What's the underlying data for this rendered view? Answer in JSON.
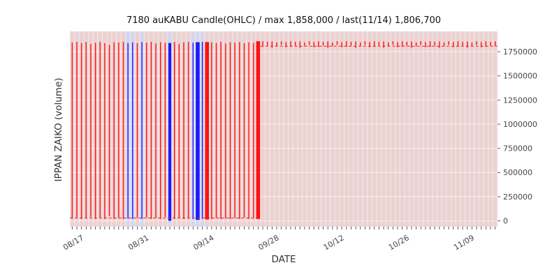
{
  "chart_data": {
    "type": "candlestick",
    "title": "7180 auKABU Candle(OHLC) / max 1,858,000 / last(11/14) 1,806,700",
    "xlabel": "DATE",
    "ylabel": "IPPAN ZAIKO (volume)",
    "max_value": 1858000,
    "last_label": "11/14",
    "last_value": 1806700,
    "n_days": 92,
    "ylim": [
      -60000,
      1960000
    ],
    "y_ticks": [
      0,
      250000,
      500000,
      750000,
      1000000,
      1250000,
      1500000,
      1750000
    ],
    "y_tick_labels": [
      "0",
      "250000",
      "500000",
      "750000",
      "1000000",
      "1250000",
      "1500000",
      "1750000"
    ],
    "x_ticks": [
      {
        "label": "08/17",
        "i": 2
      },
      {
        "label": "08/31",
        "i": 16
      },
      {
        "label": "09/14",
        "i": 30
      },
      {
        "label": "09/28",
        "i": 44
      },
      {
        "label": "10/12",
        "i": 58
      },
      {
        "label": "10/26",
        "i": 72
      },
      {
        "label": "11/09",
        "i": 86
      }
    ],
    "colors": {
      "plot_bg": "#ebebeb",
      "grid": "#ffffff",
      "red": "#ff1111",
      "blue": "#1a1aff",
      "stripe_red": "rgba(255,60,60,0.14)",
      "stripe_blue": "rgba(90,90,255,0.14)",
      "dashed": "#ff2222",
      "tick": "#333333",
      "tick_label": "#444444"
    },
    "legend": "none",
    "grid_on": true,
    "reference_lines": [
      {
        "start": 0,
        "end": 40,
        "value": 30000,
        "style": "dashed"
      },
      {
        "start": 41,
        "end": 91,
        "value": 1806700,
        "style": "dashed"
      }
    ],
    "candles": [
      [
        20000,
        1845000,
        "r",
        1
      ],
      [
        30000,
        1852000,
        "r",
        1
      ],
      [
        20000,
        1840000,
        "r",
        1
      ],
      [
        25000,
        1850000,
        "r",
        1
      ],
      [
        40000,
        1830000,
        "r",
        1
      ],
      [
        20000,
        1845000,
        "r",
        1
      ],
      [
        30000,
        1852000,
        "r",
        1
      ],
      [
        20000,
        1838000,
        "r",
        1
      ],
      [
        50000,
        1820000,
        "r",
        1
      ],
      [
        20000,
        1848000,
        "r",
        1
      ],
      [
        30000,
        1845000,
        "r",
        1
      ],
      [
        20000,
        1852000,
        "r",
        1
      ],
      [
        25000,
        1840000,
        "b",
        1
      ],
      [
        20000,
        1846000,
        "b",
        1
      ],
      [
        30000,
        1838000,
        "r",
        1
      ],
      [
        20000,
        1850000,
        "b",
        1
      ],
      [
        35000,
        1844000,
        "r",
        1
      ],
      [
        20000,
        1852000,
        "r",
        1
      ],
      [
        30000,
        1836000,
        "r",
        1
      ],
      [
        20000,
        1848000,
        "r",
        1
      ],
      [
        40000,
        1842000,
        "r",
        1
      ],
      [
        0,
        1840000,
        "b",
        3
      ],
      [
        20000,
        1850000,
        "r",
        1
      ],
      [
        30000,
        1830000,
        "r",
        1
      ],
      [
        20000,
        1846000,
        "r",
        1
      ],
      [
        25000,
        1852000,
        "r",
        1
      ],
      [
        20000,
        1844000,
        "b",
        1
      ],
      [
        10000,
        1848000,
        "b",
        4
      ],
      [
        20000,
        1852000,
        "b",
        1
      ],
      [
        15000,
        1850000,
        "r",
        4
      ],
      [
        20000,
        1846000,
        "r",
        1
      ],
      [
        30000,
        1840000,
        "r",
        1
      ],
      [
        20000,
        1852000,
        "r",
        1
      ],
      [
        25000,
        1836000,
        "r",
        1
      ],
      [
        20000,
        1848000,
        "r",
        1
      ],
      [
        30000,
        1844000,
        "r",
        1
      ],
      [
        20000,
        1850000,
        "r",
        1
      ],
      [
        35000,
        1838000,
        "r",
        1
      ],
      [
        20000,
        1846000,
        "r",
        1
      ],
      [
        25000,
        1842000,
        "r",
        1
      ],
      [
        20000,
        1858000,
        "r",
        4
      ],
      [
        1800000,
        1858000,
        "r",
        1
      ],
      [
        1812000,
        1852000,
        "r",
        1
      ],
      [
        1790000,
        1856000,
        "r",
        1
      ],
      [
        1806700,
        1846000,
        "r",
        1
      ],
      [
        1820000,
        1858000,
        "r",
        1
      ],
      [
        1796000,
        1850000,
        "r",
        1
      ],
      [
        1800000,
        1858000,
        "r",
        1
      ],
      [
        1812000,
        1852000,
        "r",
        1
      ],
      [
        1790000,
        1856000,
        "r",
        1
      ],
      [
        1806700,
        1846000,
        "r",
        1
      ],
      [
        1820000,
        1858000,
        "r",
        1
      ],
      [
        1796000,
        1850000,
        "r",
        1
      ],
      [
        1800000,
        1858000,
        "r",
        1
      ],
      [
        1812000,
        1852000,
        "r",
        1
      ],
      [
        1790000,
        1856000,
        "r",
        1
      ],
      [
        1806700,
        1846000,
        "r",
        1
      ],
      [
        1820000,
        1858000,
        "r",
        1
      ],
      [
        1796000,
        1850000,
        "r",
        1
      ],
      [
        1800000,
        1858000,
        "r",
        1
      ],
      [
        1812000,
        1852000,
        "r",
        1
      ],
      [
        1790000,
        1856000,
        "r",
        1
      ],
      [
        1806700,
        1846000,
        "r",
        1
      ],
      [
        1820000,
        1858000,
        "r",
        1
      ],
      [
        1796000,
        1850000,
        "r",
        1
      ],
      [
        1800000,
        1858000,
        "r",
        1
      ],
      [
        1812000,
        1852000,
        "r",
        1
      ],
      [
        1790000,
        1856000,
        "r",
        1
      ],
      [
        1806700,
        1846000,
        "r",
        1
      ],
      [
        1820000,
        1858000,
        "r",
        1
      ],
      [
        1796000,
        1850000,
        "r",
        1
      ],
      [
        1800000,
        1858000,
        "r",
        1
      ],
      [
        1812000,
        1852000,
        "r",
        1
      ],
      [
        1790000,
        1856000,
        "r",
        1
      ],
      [
        1806700,
        1846000,
        "r",
        1
      ],
      [
        1820000,
        1858000,
        "r",
        1
      ],
      [
        1796000,
        1850000,
        "r",
        1
      ],
      [
        1800000,
        1858000,
        "r",
        1
      ],
      [
        1812000,
        1852000,
        "r",
        1
      ],
      [
        1790000,
        1856000,
        "r",
        1
      ],
      [
        1806700,
        1846000,
        "r",
        1
      ],
      [
        1820000,
        1858000,
        "r",
        1
      ],
      [
        1796000,
        1850000,
        "r",
        1
      ],
      [
        1800000,
        1858000,
        "r",
        1
      ],
      [
        1812000,
        1852000,
        "r",
        1
      ],
      [
        1790000,
        1856000,
        "r",
        1
      ],
      [
        1806700,
        1846000,
        "r",
        1
      ],
      [
        1820000,
        1858000,
        "r",
        1
      ],
      [
        1796000,
        1850000,
        "r",
        1
      ],
      [
        1800000,
        1858000,
        "r",
        1
      ],
      [
        1812000,
        1852000,
        "r",
        1
      ],
      [
        1806700,
        1858000,
        "r",
        1
      ]
    ]
  }
}
